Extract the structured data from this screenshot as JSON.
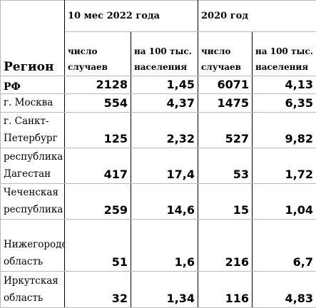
{
  "table": {
    "header": {
      "region": "Регион",
      "period_2022": "10 мес 2022 года",
      "period_2020": "2020 год",
      "cases": "число случаев",
      "per_100k": "на 100 тыс. населения"
    },
    "rows": [
      {
        "region": "РФ",
        "cases_2022": "2128",
        "rate_2022": "1,45",
        "cases_2020": "6071",
        "rate_2020": "4,13"
      },
      {
        "region": "г. Москва",
        "cases_2022": "554",
        "rate_2022": "4,37",
        "cases_2020": "1475",
        "rate_2020": "6,35"
      },
      {
        "region": "г. Санкт-Петербург",
        "cases_2022": "125",
        "rate_2022": "2,32",
        "cases_2020": "527",
        "rate_2020": "9,82"
      },
      {
        "region": "республика Дагестан",
        "cases_2022": "417",
        "rate_2022": "17,4",
        "cases_2020": "53",
        "rate_2020": "1,72"
      },
      {
        "region": "Чеченская республика",
        "cases_2022": "259",
        "rate_2022": "14,6",
        "cases_2020": "15",
        "rate_2020": "1,04"
      },
      {
        "region": "Нижегородская область",
        "cases_2022": "51",
        "rate_2022": "1,6",
        "cases_2020": "216",
        "rate_2020": "6,7"
      },
      {
        "region": "Иркутская область",
        "cases_2022": "32",
        "rate_2022": "1,34",
        "cases_2020": "116",
        "rate_2020": "4,83"
      }
    ]
  }
}
